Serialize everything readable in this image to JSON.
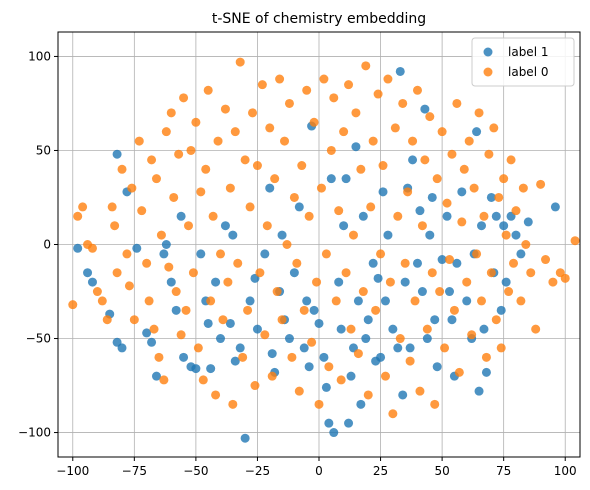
{
  "chart_data": {
    "type": "scatter",
    "title": "t-SNE of chemistry embedding",
    "xlabel": "",
    "ylabel": "",
    "xlim": [
      -106,
      106
    ],
    "ylim": [
      -113,
      113
    ],
    "xticks": [
      -100,
      -75,
      -50,
      -25,
      0,
      25,
      50,
      75,
      100
    ],
    "yticks": [
      -100,
      -50,
      0,
      50,
      100
    ],
    "grid": true,
    "legend_position": "top-right",
    "series": [
      {
        "name": "label 1",
        "color": "#1f77b4",
        "points": [
          [
            -98,
            -2
          ],
          [
            -94,
            -15
          ],
          [
            -92,
            -20
          ],
          [
            -85,
            -37
          ],
          [
            -82,
            -52
          ],
          [
            -80,
            -55
          ],
          [
            -82,
            48
          ],
          [
            -78,
            28
          ],
          [
            -74,
            -2
          ],
          [
            -70,
            -47
          ],
          [
            -68,
            -52
          ],
          [
            -66,
            -70
          ],
          [
            -63,
            -5
          ],
          [
            -62,
            0
          ],
          [
            -60,
            -20
          ],
          [
            -58,
            -35
          ],
          [
            -56,
            15
          ],
          [
            -55,
            -60
          ],
          [
            -52,
            -65
          ],
          [
            -50,
            -66
          ],
          [
            -48,
            -5
          ],
          [
            -46,
            -30
          ],
          [
            -45,
            -42
          ],
          [
            -44,
            -66
          ],
          [
            -42,
            -20
          ],
          [
            -40,
            -50
          ],
          [
            -38,
            10
          ],
          [
            -36,
            -42
          ],
          [
            -35,
            5
          ],
          [
            -34,
            -62
          ],
          [
            -32,
            -55
          ],
          [
            -30,
            -103
          ],
          [
            -28,
            -30
          ],
          [
            -26,
            -18
          ],
          [
            -25,
            -45
          ],
          [
            -22,
            -5
          ],
          [
            -20,
            30
          ],
          [
            -19,
            -58
          ],
          [
            -18,
            -68
          ],
          [
            -16,
            -25
          ],
          [
            -15,
            5
          ],
          [
            -14,
            -40
          ],
          [
            -12,
            -50
          ],
          [
            -10,
            -15
          ],
          [
            -8,
            20
          ],
          [
            -6,
            -55
          ],
          [
            -5,
            -30
          ],
          [
            -4,
            -65
          ],
          [
            -3,
            63
          ],
          [
            -2,
            -35
          ],
          [
            0,
            -42
          ],
          [
            2,
            -60
          ],
          [
            3,
            -76
          ],
          [
            4,
            -95
          ],
          [
            5,
            35
          ],
          [
            6,
            -100
          ],
          [
            8,
            -20
          ],
          [
            9,
            -45
          ],
          [
            10,
            10
          ],
          [
            11,
            35
          ],
          [
            12,
            -95
          ],
          [
            13,
            -70
          ],
          [
            14,
            -55
          ],
          [
            15,
            52
          ],
          [
            16,
            -30
          ],
          [
            17,
            -85
          ],
          [
            18,
            15
          ],
          [
            19,
            -50
          ],
          [
            20,
            -40
          ],
          [
            22,
            -10
          ],
          [
            23,
            -62
          ],
          [
            24,
            -18
          ],
          [
            25,
            -60
          ],
          [
            26,
            28
          ],
          [
            27,
            -30
          ],
          [
            28,
            5
          ],
          [
            30,
            -45
          ],
          [
            32,
            -55
          ],
          [
            33,
            92
          ],
          [
            34,
            -80
          ],
          [
            35,
            -20
          ],
          [
            36,
            30
          ],
          [
            37,
            -55
          ],
          [
            38,
            45
          ],
          [
            40,
            -10
          ],
          [
            41,
            18
          ],
          [
            42,
            -25
          ],
          [
            43,
            72
          ],
          [
            44,
            -50
          ],
          [
            45,
            5
          ],
          [
            46,
            25
          ],
          [
            47,
            -40
          ],
          [
            48,
            -65
          ],
          [
            50,
            -8
          ],
          [
            52,
            15
          ],
          [
            53,
            -25
          ],
          [
            54,
            -40
          ],
          [
            55,
            -70
          ],
          [
            56,
            -10
          ],
          [
            58,
            28
          ],
          [
            60,
            -30
          ],
          [
            62,
            -50
          ],
          [
            63,
            -5
          ],
          [
            64,
            60
          ],
          [
            65,
            -78
          ],
          [
            66,
            10
          ],
          [
            67,
            -45
          ],
          [
            68,
            -68
          ],
          [
            70,
            25
          ],
          [
            71,
            -15
          ],
          [
            72,
            15
          ],
          [
            74,
            -35
          ],
          [
            75,
            10
          ],
          [
            76,
            -20
          ],
          [
            78,
            15
          ],
          [
            80,
            5
          ],
          [
            82,
            -5
          ],
          [
            85,
            12
          ],
          [
            96,
            20
          ]
        ]
      },
      {
        "name": "label 0",
        "color": "#ff7f0e",
        "points": [
          [
            -100,
            -32
          ],
          [
            -98,
            15
          ],
          [
            -96,
            20
          ],
          [
            -94,
            0
          ],
          [
            -92,
            -2
          ],
          [
            -90,
            -25
          ],
          [
            -88,
            -30
          ],
          [
            -86,
            -40
          ],
          [
            -84,
            20
          ],
          [
            -83,
            10
          ],
          [
            -82,
            -15
          ],
          [
            -80,
            40
          ],
          [
            -78,
            -5
          ],
          [
            -77,
            -22
          ],
          [
            -76,
            30
          ],
          [
            -75,
            -40
          ],
          [
            -73,
            55
          ],
          [
            -72,
            18
          ],
          [
            -70,
            -10
          ],
          [
            -69,
            -30
          ],
          [
            -68,
            45
          ],
          [
            -67,
            -45
          ],
          [
            -66,
            35
          ],
          [
            -65,
            -60
          ],
          [
            -64,
            5
          ],
          [
            -63,
            -72
          ],
          [
            -62,
            60
          ],
          [
            -61,
            -12
          ],
          [
            -60,
            70
          ],
          [
            -59,
            25
          ],
          [
            -58,
            -25
          ],
          [
            -57,
            48
          ],
          [
            -56,
            -48
          ],
          [
            -55,
            78
          ],
          [
            -54,
            -35
          ],
          [
            -53,
            10
          ],
          [
            -52,
            50
          ],
          [
            -51,
            -15
          ],
          [
            -50,
            65
          ],
          [
            -49,
            -55
          ],
          [
            -48,
            28
          ],
          [
            -47,
            -72
          ],
          [
            -46,
            40
          ],
          [
            -45,
            82
          ],
          [
            -44,
            -30
          ],
          [
            -43,
            15
          ],
          [
            -42,
            -80
          ],
          [
            -41,
            55
          ],
          [
            -40,
            -5
          ],
          [
            -39,
            -40
          ],
          [
            -38,
            72
          ],
          [
            -37,
            -20
          ],
          [
            -36,
            30
          ],
          [
            -35,
            -85
          ],
          [
            -34,
            60
          ],
          [
            -33,
            -10
          ],
          [
            -32,
            97
          ],
          [
            -31,
            -60
          ],
          [
            -30,
            45
          ],
          [
            -29,
            -35
          ],
          [
            -28,
            20
          ],
          [
            -27,
            70
          ],
          [
            -26,
            -75
          ],
          [
            -25,
            42
          ],
          [
            -24,
            -15
          ],
          [
            -23,
            85
          ],
          [
            -22,
            -48
          ],
          [
            -21,
            10
          ],
          [
            -20,
            62
          ],
          [
            -19,
            -70
          ],
          [
            -18,
            35
          ],
          [
            -17,
            -25
          ],
          [
            -16,
            88
          ],
          [
            -15,
            -40
          ],
          [
            -14,
            55
          ],
          [
            -13,
            0
          ],
          [
            -12,
            75
          ],
          [
            -11,
            -60
          ],
          [
            -10,
            25
          ],
          [
            -9,
            -10
          ],
          [
            -8,
            -78
          ],
          [
            -7,
            42
          ],
          [
            -6,
            -35
          ],
          [
            -5,
            82
          ],
          [
            -4,
            15
          ],
          [
            -3,
            -52
          ],
          [
            -2,
            65
          ],
          [
            -1,
            -20
          ],
          [
            0,
            -85
          ],
          [
            1,
            30
          ],
          [
            2,
            88
          ],
          [
            3,
            -5
          ],
          [
            4,
            -65
          ],
          [
            5,
            50
          ],
          [
            6,
            78
          ],
          [
            7,
            -30
          ],
          [
            8,
            18
          ],
          [
            9,
            -72
          ],
          [
            10,
            60
          ],
          [
            11,
            -15
          ],
          [
            12,
            85
          ],
          [
            13,
            -45
          ],
          [
            14,
            5
          ],
          [
            15,
            70
          ],
          [
            16,
            -58
          ],
          [
            17,
            40
          ],
          [
            18,
            -25
          ],
          [
            19,
            95
          ],
          [
            20,
            -80
          ],
          [
            21,
            20
          ],
          [
            22,
            55
          ],
          [
            23,
            -35
          ],
          [
            24,
            80
          ],
          [
            25,
            -5
          ],
          [
            26,
            42
          ],
          [
            27,
            -70
          ],
          [
            28,
            88
          ],
          [
            29,
            -20
          ],
          [
            30,
            -90
          ],
          [
            31,
            62
          ],
          [
            32,
            15
          ],
          [
            33,
            -50
          ],
          [
            34,
            75
          ],
          [
            35,
            -10
          ],
          [
            36,
            28
          ],
          [
            37,
            -62
          ],
          [
            38,
            55
          ],
          [
            39,
            -30
          ],
          [
            40,
            82
          ],
          [
            41,
            -78
          ],
          [
            42,
            10
          ],
          [
            43,
            45
          ],
          [
            44,
            -45
          ],
          [
            45,
            68
          ],
          [
            46,
            -15
          ],
          [
            47,
            -85
          ],
          [
            48,
            35
          ],
          [
            49,
            -25
          ],
          [
            50,
            60
          ],
          [
            51,
            -55
          ],
          [
            52,
            22
          ],
          [
            53,
            -8
          ],
          [
            54,
            48
          ],
          [
            55,
            -35
          ],
          [
            56,
            75
          ],
          [
            57,
            -68
          ],
          [
            58,
            12
          ],
          [
            59,
            40
          ],
          [
            60,
            -20
          ],
          [
            61,
            55
          ],
          [
            62,
            -48
          ],
          [
            63,
            30
          ],
          [
            64,
            -5
          ],
          [
            65,
            70
          ],
          [
            66,
            -30
          ],
          [
            67,
            15
          ],
          [
            68,
            -60
          ],
          [
            69,
            48
          ],
          [
            70,
            -15
          ],
          [
            71,
            62
          ],
          [
            72,
            -40
          ],
          [
            73,
            25
          ],
          [
            74,
            -55
          ],
          [
            75,
            35
          ],
          [
            76,
            5
          ],
          [
            77,
            -25
          ],
          [
            78,
            45
          ],
          [
            79,
            -10
          ],
          [
            80,
            18
          ],
          [
            82,
            -30
          ],
          [
            83,
            30
          ],
          [
            84,
            0
          ],
          [
            86,
            -15
          ],
          [
            88,
            -45
          ],
          [
            90,
            32
          ],
          [
            92,
            -8
          ],
          [
            95,
            -20
          ],
          [
            98,
            -15
          ],
          [
            100,
            -18
          ],
          [
            104,
            2
          ]
        ]
      }
    ]
  }
}
